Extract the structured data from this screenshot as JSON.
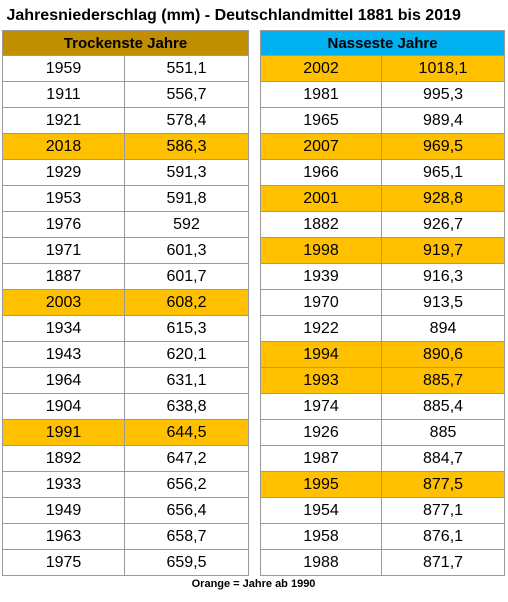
{
  "title": "Jahresniederschlag (mm) - Deutschlandmittel 1881 bis 2019",
  "highlight_color": "#ffc000",
  "dry": {
    "header": "Trockenste Jahre",
    "header_color": "#bf8f00",
    "rows": [
      {
        "year": "1959",
        "value": "551,1",
        "highlighted": false
      },
      {
        "year": "1911",
        "value": "556,7",
        "highlighted": false
      },
      {
        "year": "1921",
        "value": "578,4",
        "highlighted": false
      },
      {
        "year": "2018",
        "value": "586,3",
        "highlighted": true
      },
      {
        "year": "1929",
        "value": "591,3",
        "highlighted": false
      },
      {
        "year": "1953",
        "value": "591,8",
        "highlighted": false
      },
      {
        "year": "1976",
        "value": "592",
        "highlighted": false
      },
      {
        "year": "1971",
        "value": "601,3",
        "highlighted": false
      },
      {
        "year": "1887",
        "value": "601,7",
        "highlighted": false
      },
      {
        "year": "2003",
        "value": "608,2",
        "highlighted": true
      },
      {
        "year": "1934",
        "value": "615,3",
        "highlighted": false
      },
      {
        "year": "1943",
        "value": "620,1",
        "highlighted": false
      },
      {
        "year": "1964",
        "value": "631,1",
        "highlighted": false
      },
      {
        "year": "1904",
        "value": "638,8",
        "highlighted": false
      },
      {
        "year": "1991",
        "value": "644,5",
        "highlighted": true
      },
      {
        "year": "1892",
        "value": "647,2",
        "highlighted": false
      },
      {
        "year": "1933",
        "value": "656,2",
        "highlighted": false
      },
      {
        "year": "1949",
        "value": "656,4",
        "highlighted": false
      },
      {
        "year": "1963",
        "value": "658,7",
        "highlighted": false
      },
      {
        "year": "1975",
        "value": "659,5",
        "highlighted": false
      }
    ]
  },
  "wet": {
    "header": "Nasseste Jahre",
    "header_color": "#00b0f0",
    "rows": [
      {
        "year": "2002",
        "value": "1018,1",
        "highlighted": true
      },
      {
        "year": "1981",
        "value": "995,3",
        "highlighted": false
      },
      {
        "year": "1965",
        "value": "989,4",
        "highlighted": false
      },
      {
        "year": "2007",
        "value": "969,5",
        "highlighted": true
      },
      {
        "year": "1966",
        "value": "965,1",
        "highlighted": false
      },
      {
        "year": "2001",
        "value": "928,8",
        "highlighted": true
      },
      {
        "year": "1882",
        "value": "926,7",
        "highlighted": false
      },
      {
        "year": "1998",
        "value": "919,7",
        "highlighted": true
      },
      {
        "year": "1939",
        "value": "916,3",
        "highlighted": false
      },
      {
        "year": "1970",
        "value": "913,5",
        "highlighted": false
      },
      {
        "year": "1922",
        "value": "894",
        "highlighted": false
      },
      {
        "year": "1994",
        "value": "890,6",
        "highlighted": true
      },
      {
        "year": "1993",
        "value": "885,7",
        "highlighted": true
      },
      {
        "year": "1974",
        "value": "885,4",
        "highlighted": false
      },
      {
        "year": "1926",
        "value": "885",
        "highlighted": false
      },
      {
        "year": "1987",
        "value": "884,7",
        "highlighted": false
      },
      {
        "year": "1995",
        "value": "877,5",
        "highlighted": true
      },
      {
        "year": "1954",
        "value": "877,1",
        "highlighted": false
      },
      {
        "year": "1958",
        "value": "876,1",
        "highlighted": false
      },
      {
        "year": "1988",
        "value": "871,7",
        "highlighted": false
      }
    ]
  },
  "footnote": "Orange = Jahre ab 1990"
}
